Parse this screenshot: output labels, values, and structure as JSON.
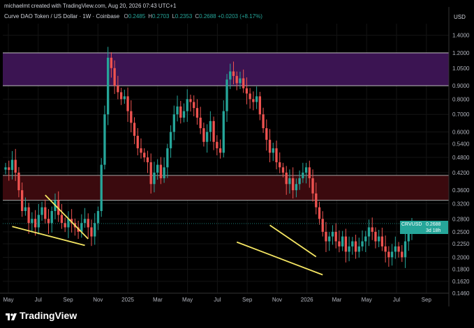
{
  "header": {
    "credit": "michaelmt created with TradingView.com, Aug 20, 2026 07:43 UTC+1",
    "symbol": "Curve DAO Token / US Dollar · 1W · Coinbase",
    "ohlc": [
      {
        "label": "O",
        "value": "0.2485"
      },
      {
        "label": "H",
        "value": "0.2703"
      },
      {
        "label": "L",
        "value": "0.2353"
      },
      {
        "label": "C",
        "value": "0.2688"
      }
    ],
    "change": "+0.0203 (+8.17%)"
  },
  "price_badge": {
    "symbol": "CRVUSD",
    "price": "0.2688",
    "countdown": "3d 18h"
  },
  "footer": {
    "brand": "TradingView"
  },
  "colors": {
    "up": "#26a69a",
    "down": "#ef5350",
    "supply_zone": "#3b1452",
    "demand_zone": "#3b0a0e",
    "trendline": "#f5e663",
    "background": "#000000"
  },
  "chart_data": {
    "type": "candlestick",
    "title": "Curve DAO Token / US Dollar · 1W · Coinbase",
    "yscale": "log",
    "ylabel": "USD",
    "ylim": [
      0.146,
      1.55
    ],
    "y_ticks": [
      "1.4000",
      "1.2000",
      "1.0500",
      "0.9000",
      "0.8000",
      "0.7000",
      "0.6000",
      "0.5400",
      "0.4800",
      "0.4200",
      "0.3600",
      "0.3200",
      "0.2800",
      "0.2500",
      "0.2250",
      "0.2000",
      "0.1800",
      "0.1620",
      "0.1460"
    ],
    "x_ticks": [
      "May",
      "Jul",
      "Sep",
      "Nov",
      "2025",
      "Mar",
      "May",
      "Jul",
      "Sep",
      "Nov",
      "2026",
      "Mar",
      "May",
      "Jul",
      "Sep"
    ],
    "x_range": [
      "2024-05",
      "2026-09"
    ],
    "zones": [
      {
        "name": "supply",
        "range": [
          0.9,
          1.2
        ]
      },
      {
        "name": "demand",
        "range": [
          0.33,
          0.41
        ]
      }
    ],
    "close_series": [
      0.44,
      0.43,
      0.47,
      0.42,
      0.36,
      0.3,
      0.31,
      0.27,
      0.28,
      0.26,
      0.29,
      0.31,
      0.28,
      0.27,
      0.3,
      0.33,
      0.29,
      0.27,
      0.26,
      0.28,
      0.27,
      0.26,
      0.25,
      0.27,
      0.28,
      0.26,
      0.24,
      0.27,
      0.3,
      0.45,
      0.7,
      1.15,
      1.05,
      0.9,
      0.85,
      0.8,
      0.82,
      0.72,
      0.65,
      0.58,
      0.52,
      0.5,
      0.48,
      0.46,
      0.38,
      0.42,
      0.45,
      0.4,
      0.44,
      0.52,
      0.6,
      0.7,
      0.75,
      0.68,
      0.72,
      0.8,
      0.78,
      0.74,
      0.68,
      0.62,
      0.55,
      0.6,
      0.66,
      0.55,
      0.52,
      0.5,
      0.72,
      0.95,
      1.02,
      0.98,
      0.92,
      0.96,
      0.88,
      0.84,
      0.8,
      0.78,
      0.82,
      0.7,
      0.62,
      0.56,
      0.5,
      0.52,
      0.46,
      0.44,
      0.42,
      0.38,
      0.4,
      0.36,
      0.38,
      0.4,
      0.42,
      0.44,
      0.4,
      0.35,
      0.31,
      0.28,
      0.25,
      0.23,
      0.24,
      0.25,
      0.23,
      0.22,
      0.24,
      0.21,
      0.22,
      0.23,
      0.21,
      0.22,
      0.23,
      0.24,
      0.26,
      0.25,
      0.23,
      0.24,
      0.22,
      0.21,
      0.2,
      0.21,
      0.22,
      0.21,
      0.2,
      0.23,
      0.25,
      0.2688
    ],
    "last_close": 0.2688
  }
}
